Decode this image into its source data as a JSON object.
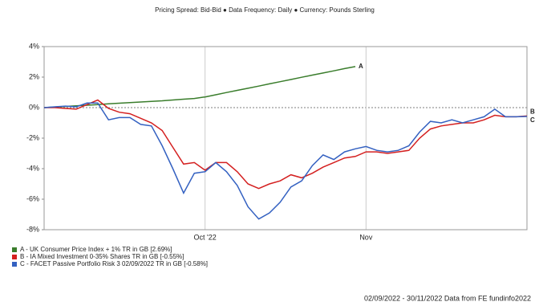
{
  "chart_data": {
    "type": "line",
    "subtitle": "Pricing Spread: Bid-Bid ● Data Frequency: Daily ● Currency: Pounds Sterling",
    "footer": "02/09/2022 - 30/11/2022 Data from FE fundinfo2022",
    "categories": [
      null,
      null,
      null,
      null,
      null,
      null,
      null,
      null,
      null,
      null,
      null,
      null,
      null,
      null,
      null,
      "Oct '22",
      null,
      null,
      null,
      null,
      null,
      null,
      null,
      null,
      null,
      null,
      null,
      null,
      null,
      null,
      "Nov",
      null,
      null,
      null,
      null,
      null,
      null,
      null,
      null,
      null,
      null,
      null,
      null,
      null,
      null,
      null
    ],
    "ylim": [
      -8,
      4
    ],
    "yticks": [
      {
        "value": -8,
        "label": "-8%"
      },
      {
        "value": -6,
        "label": "-6%"
      },
      {
        "value": -4,
        "label": "-4%"
      },
      {
        "value": -2,
        "label": "-2%"
      },
      {
        "value": 0,
        "label": "0%"
      },
      {
        "value": 2,
        "label": "2%"
      },
      {
        "value": 4,
        "label": "4%"
      }
    ],
    "series": [
      {
        "name": "A - UK Consumer Price Index + 1% TR in GB [2.69%]",
        "label": "A",
        "color": "#3a7d2c",
        "values": [
          0,
          0.04,
          0.08,
          0.12,
          0.16,
          0.2,
          0.25,
          0.29,
          0.33,
          0.37,
          0.41,
          0.45,
          0.5,
          0.55,
          0.6,
          0.7,
          0.84,
          0.99,
          1.13,
          1.27,
          1.41,
          1.56,
          1.7,
          1.84,
          1.99,
          2.13,
          2.27,
          2.41,
          2.56,
          2.69,
          null,
          null,
          null,
          null,
          null,
          null,
          null,
          null,
          null,
          null,
          null,
          null,
          null,
          null,
          null,
          null
        ]
      },
      {
        "name": "B - IA Mixed Investment 0-35% Shares TR in GB [-0.55%]",
        "label": "B",
        "color": "#d42020",
        "values": [
          0,
          0,
          -0.05,
          -0.1,
          0.2,
          0.5,
          -0.05,
          -0.3,
          -0.4,
          -0.7,
          -1.0,
          -1.5,
          -2.6,
          -3.7,
          -3.6,
          -4.1,
          -3.6,
          -3.6,
          -4.2,
          -5.0,
          -5.3,
          -5.0,
          -4.8,
          -4.4,
          -4.6,
          -4.3,
          -3.9,
          -3.6,
          -3.3,
          -3.2,
          -2.9,
          -2.9,
          -3.0,
          -2.9,
          -2.8,
          -2.0,
          -1.4,
          -1.2,
          -1.1,
          -1.0,
          -1.0,
          -0.8,
          -0.5,
          -0.6,
          -0.6,
          -0.55
        ]
      },
      {
        "name": "C - FACET Passive Portfolio Risk 3 02/09/2022 TR in GB [-0.58%]",
        "label": "C",
        "color": "#3461c1",
        "values": [
          0,
          0.05,
          0.1,
          0.05,
          0.3,
          0.3,
          -0.8,
          -0.65,
          -0.65,
          -1.1,
          -1.2,
          -2.5,
          -4.0,
          -5.6,
          -4.3,
          -4.2,
          -3.6,
          -4.2,
          -5.1,
          -6.5,
          -7.3,
          -6.9,
          -6.2,
          -5.2,
          -4.8,
          -3.8,
          -3.1,
          -3.4,
          -2.9,
          -2.7,
          -2.55,
          -2.8,
          -2.9,
          -2.8,
          -2.5,
          -1.6,
          -0.9,
          -1.0,
          -0.8,
          -1.0,
          -0.8,
          -0.6,
          -0.1,
          -0.6,
          -0.6,
          -0.58
        ]
      }
    ],
    "grid": true
  }
}
